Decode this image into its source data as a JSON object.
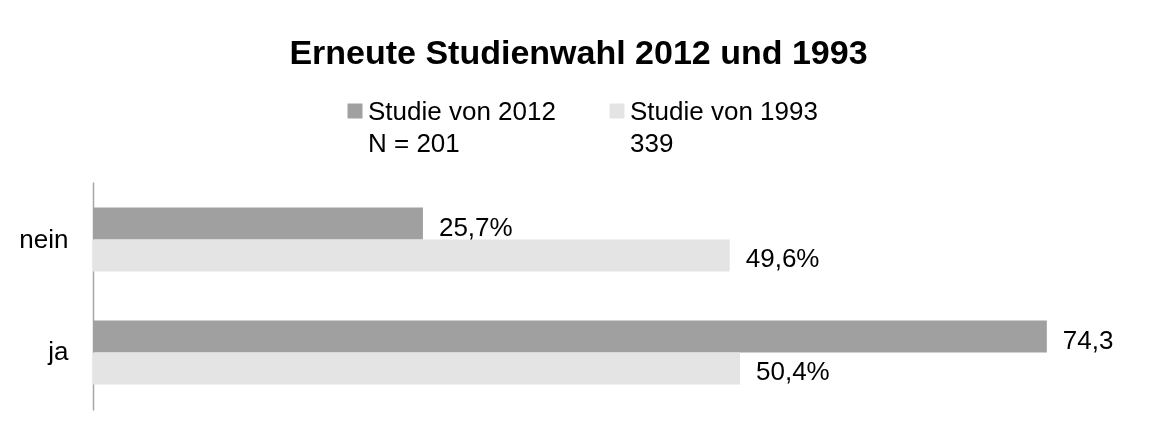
{
  "chart_data": {
    "type": "bar",
    "orientation": "horizontal",
    "title": "Erneute Studienwahl 2012 und 1993",
    "categories": [
      "nein",
      "ja"
    ],
    "series": [
      {
        "name": "Studie von 2012\nN = 201",
        "color": "#a0a0a0",
        "values": [
          25.7,
          74.3
        ],
        "value_labels": [
          "25,7%",
          "74,3"
        ]
      },
      {
        "name": "Studie von 1993\n339",
        "color": "#e4e4e4",
        "values": [
          49.6,
          50.4
        ],
        "value_labels": [
          "49,6%",
          "50,4%"
        ]
      }
    ],
    "legend": "top",
    "tick_labels": "y"
  }
}
